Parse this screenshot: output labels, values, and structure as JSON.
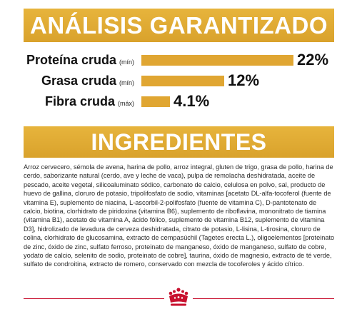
{
  "analysis": {
    "title": "ANÁLISIS GARANTIZADO",
    "rows": [
      {
        "name": "Proteína cruda",
        "qualifier": "(mín)",
        "value": "22%",
        "percent": 22
      },
      {
        "name": "Grasa cruda",
        "qualifier": "(mín)",
        "value": "12%",
        "percent": 12
      },
      {
        "name": "Fibra cruda",
        "qualifier": "(máx)",
        "value": "4.1%",
        "percent": 4.1
      }
    ]
  },
  "ingredients": {
    "title": "INGREDIENTES",
    "text": "Arroz cervecero, sémola de avena, harina de pollo, arroz integral, gluten de trigo, grasa de pollo, harina de cerdo, saborizante natural (cerdo, ave y leche de vaca), pulpa de remolacha deshidratada, aceite de pescado, aceite vegetal, silicoaluminato sódico, carbonato de calcio, celulosa en polvo, sal, producto de huevo de gallina, cloruro de potasio, tripolifosfato de sodio, vitaminas [acetato DL-alfa-tocoferol (fuente de vitamina E), suplemento de niacina, L-ascorbil-2-polifosfato (fuente de vitamina C), D-pantotenato de calcio, biotina, clorhidrato de piridoxina (vitamina B6), suplemento de riboflavina, mononitrato de tiamina (vitamina B1), acetato de vitamina A, ácido fólico, suplemento de vitamina B12, suplemento de vitamina D3], hidrolizado de levadura de cerveza deshidratada, citrato de potasio, L-lisina, L-tirosina, cloruro de colina, clorhidrato de glucosamina, extracto de cempasúchil (Tagetes erecta L.), oligoelementos [proteinato de zinc, óxido de zinc, sulfato ferroso, proteinato de manganeso, óxido de manganeso, sulfato de cobre, yodato de calcio, selenito de sodio, proteinato de cobre], taurina, óxido de magnesio, extracto de té verde, sulfato de condroitina, extracto de romero, conservado con mezcla de tocoferoles y ácido cítrico."
  },
  "colors": {
    "accent": "#e0a632",
    "brand_red": "#c8102e"
  },
  "icons": {
    "footer_logo": "royal-crown-icon"
  }
}
